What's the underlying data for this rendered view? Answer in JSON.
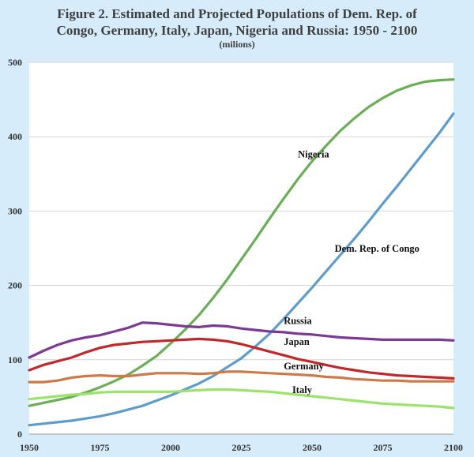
{
  "title_line1": "Figure 2. Estimated and Projected Populations of Dem. Rep. of",
  "title_line2": "Congo, Germany, Italy, Japan, Nigeria and Russia: 1950 - 2100",
  "subtitle": "(milions)",
  "chart_data": {
    "type": "line",
    "title": "Figure 2. Estimated and Projected Populations of Dem. Rep. of Congo, Germany, Italy, Japan, Nigeria and Russia: 1950 - 2100",
    "subtitle": "(milions)",
    "xlabel": "",
    "ylabel": "",
    "xlim": [
      1950,
      2100
    ],
    "ylim": [
      0,
      500
    ],
    "xticks": [
      1950,
      1975,
      2000,
      2025,
      2050,
      2075,
      2100
    ],
    "yticks": [
      0,
      100,
      200,
      300,
      400,
      500
    ],
    "grid": "horizontal",
    "legend": "inline labels",
    "series": [
      {
        "name": "Nigeria",
        "color": "#6aae56",
        "label_at": [
          2045,
          372
        ],
        "x": [
          1950,
          1955,
          1960,
          1965,
          1970,
          1975,
          1980,
          1985,
          1990,
          1995,
          2000,
          2005,
          2010,
          2015,
          2020,
          2025,
          2030,
          2035,
          2040,
          2045,
          2050,
          2055,
          2060,
          2065,
          2070,
          2075,
          2080,
          2085,
          2090,
          2095,
          2100
        ],
        "values": [
          38,
          42,
          46,
          50,
          56,
          63,
          71,
          80,
          92,
          105,
          122,
          140,
          160,
          183,
          208,
          235,
          262,
          290,
          317,
          343,
          367,
          388,
          408,
          425,
          440,
          452,
          462,
          469,
          474,
          476,
          477
        ]
      },
      {
        "name": "Dem. Rep. of Congo",
        "color": "#5e9dcb",
        "label_at": [
          2058,
          245
        ],
        "x": [
          1950,
          1955,
          1960,
          1965,
          1970,
          1975,
          1980,
          1985,
          1990,
          1995,
          2000,
          2005,
          2010,
          2015,
          2020,
          2025,
          2030,
          2035,
          2040,
          2045,
          2050,
          2055,
          2060,
          2065,
          2070,
          2075,
          2080,
          2085,
          2090,
          2095,
          2100
        ],
        "values": [
          12,
          14,
          16,
          18,
          21,
          24,
          28,
          33,
          38,
          45,
          52,
          60,
          68,
          78,
          90,
          102,
          118,
          135,
          155,
          176,
          197,
          219,
          241,
          263,
          286,
          310,
          333,
          357,
          381,
          405,
          431
        ]
      },
      {
        "name": "Russia",
        "color": "#7c3a92",
        "label_at": [
          2040,
          148
        ],
        "x": [
          1950,
          1955,
          1960,
          1965,
          1970,
          1975,
          1980,
          1985,
          1990,
          1995,
          2000,
          2005,
          2010,
          2015,
          2020,
          2025,
          2030,
          2035,
          2040,
          2045,
          2050,
          2055,
          2060,
          2065,
          2070,
          2075,
          2080,
          2085,
          2090,
          2095,
          2100
        ],
        "values": [
          103,
          112,
          120,
          126,
          130,
          133,
          138,
          143,
          150,
          149,
          147,
          145,
          144,
          146,
          145,
          142,
          140,
          138,
          137,
          135,
          134,
          132,
          130,
          129,
          128,
          127,
          127,
          127,
          127,
          127,
          126
        ]
      },
      {
        "name": "Japan",
        "color": "#c0282b",
        "label_at": [
          2040,
          120
        ],
        "x": [
          1950,
          1955,
          1960,
          1965,
          1970,
          1975,
          1980,
          1985,
          1990,
          1995,
          2000,
          2005,
          2010,
          2015,
          2020,
          2025,
          2030,
          2035,
          2040,
          2045,
          2050,
          2055,
          2060,
          2065,
          2070,
          2075,
          2080,
          2085,
          2090,
          2095,
          2100
        ],
        "values": [
          86,
          93,
          98,
          103,
          110,
          116,
          120,
          122,
          124,
          125,
          126,
          127,
          128,
          127,
          125,
          121,
          116,
          111,
          106,
          101,
          97,
          93,
          89,
          86,
          83,
          81,
          79,
          78,
          77,
          76,
          75
        ]
      },
      {
        "name": "Germany",
        "color": "#cc7b48",
        "label_at": [
          2040,
          87
        ],
        "x": [
          1950,
          1955,
          1960,
          1965,
          1970,
          1975,
          1980,
          1985,
          1990,
          1995,
          2000,
          2005,
          2010,
          2015,
          2020,
          2025,
          2030,
          2035,
          2040,
          2045,
          2050,
          2055,
          2060,
          2065,
          2070,
          2075,
          2080,
          2085,
          2090,
          2095,
          2100
        ],
        "values": [
          70,
          70,
          72,
          76,
          78,
          79,
          78,
          78,
          80,
          82,
          82,
          82,
          81,
          82,
          84,
          84,
          83,
          82,
          81,
          80,
          79,
          77,
          76,
          74,
          73,
          72,
          72,
          71,
          71,
          71,
          71
        ]
      },
      {
        "name": "Italy",
        "color": "#9be36b",
        "label_at": [
          2043,
          55
        ],
        "x": [
          1950,
          1955,
          1960,
          1965,
          1970,
          1975,
          1980,
          1985,
          1990,
          1995,
          2000,
          2005,
          2010,
          2015,
          2020,
          2025,
          2030,
          2035,
          2040,
          2045,
          2050,
          2055,
          2060,
          2065,
          2070,
          2075,
          2080,
          2085,
          2090,
          2095,
          2100
        ],
        "values": [
          47,
          49,
          51,
          53,
          54,
          56,
          57,
          57,
          57,
          57,
          57,
          58,
          59,
          60,
          60,
          59,
          58,
          57,
          55,
          53,
          51,
          49,
          47,
          45,
          43,
          41,
          40,
          39,
          38,
          37,
          35
        ]
      }
    ]
  }
}
